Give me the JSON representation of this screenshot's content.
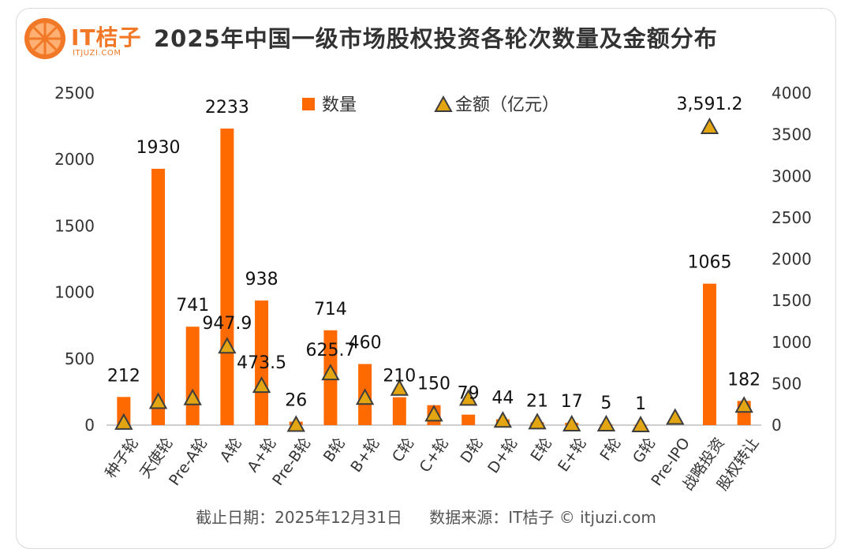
{
  "header": {
    "logo_text": "IT桔子",
    "logo_sub": "ITJUZI.COM",
    "title": "2025年中国一级市场股权投资各轮次数量及金额分布"
  },
  "footer": {
    "date_text": "截止日期：2025年12月31日",
    "source_text": "数据来源：IT桔子 © itjuzi.com"
  },
  "colors": {
    "bar": "#ff6a00",
    "marker_fill": "#e3a612",
    "marker_stroke": "#3d3d3d",
    "brand": "#f07826"
  },
  "chart_data": {
    "type": "bar",
    "categories": [
      "种子轮",
      "天使轮",
      "Pre-A轮",
      "A轮",
      "A+轮",
      "Pre-B轮",
      "B轮",
      "B+轮",
      "C轮",
      "C+轮",
      "D轮",
      "D+轮",
      "E轮",
      "E+轮",
      "F轮",
      "G轮",
      "Pre-IPO",
      "战略投资",
      "股权转让"
    ],
    "series": [
      {
        "name": "数量",
        "type": "bar",
        "axis": "left",
        "values": [
          212,
          1930,
          741,
          2233,
          938,
          26,
          714,
          460,
          210,
          150,
          79,
          44,
          21,
          17,
          5,
          1,
          null,
          1065,
          182
        ],
        "labels": [
          "212",
          "1930",
          "741",
          "2233",
          "938",
          "26",
          "714",
          "460",
          "210",
          "150",
          "79",
          "44",
          "21",
          "17",
          "5",
          "1",
          "",
          "1065",
          "182"
        ]
      },
      {
        "name": "金额（亿元）",
        "type": "marker",
        "axis": "right",
        "values": [
          30,
          280,
          325,
          947.9,
          473.5,
          5,
          625.7,
          330,
          440,
          130,
          320,
          55,
          35,
          10,
          10,
          0,
          90,
          3591.2,
          235
        ],
        "labels": [
          "",
          "",
          "",
          "947.9",
          "473.5",
          "",
          "625.7",
          "",
          "",
          "",
          "",
          "",
          "",
          "",
          "",
          "",
          "",
          "3,591.2",
          ""
        ]
      }
    ],
    "y_left": {
      "min": 0,
      "max": 2500,
      "ticks": [
        "0",
        "500",
        "1000",
        "1500",
        "2000",
        "2500"
      ]
    },
    "y_right": {
      "min": 0,
      "max": 4000,
      "ticks": [
        "0",
        "500",
        "1000",
        "1500",
        "2000",
        "2500",
        "3000",
        "3500",
        "4000"
      ]
    },
    "legend_position": "top",
    "grid": false
  }
}
